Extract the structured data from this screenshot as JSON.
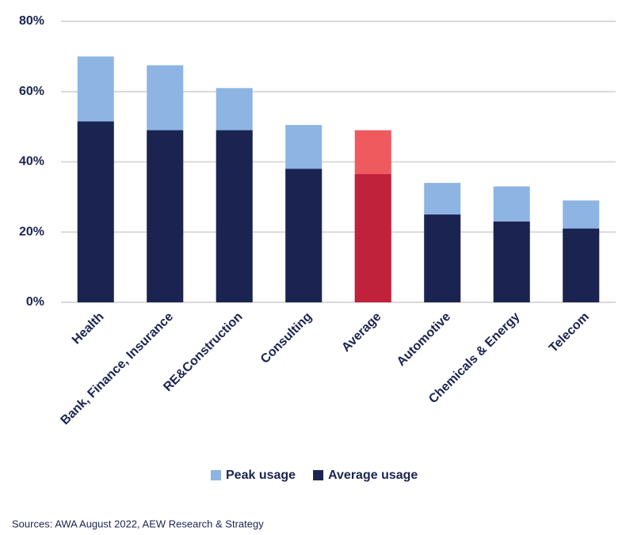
{
  "chart_data": {
    "type": "overlap_bar",
    "categories": [
      "Health",
      "Bank, Finance, Insurance",
      "RE&Construction",
      "Consulting",
      "Average",
      "Automotive",
      "Chemicals & Energy",
      "Telecom"
    ],
    "series": [
      {
        "name": "Peak usage",
        "color": "#8db4e2",
        "highlight_color": "#ef5a5f",
        "values": [
          70,
          67.5,
          61,
          50.5,
          49,
          34,
          33,
          29
        ]
      },
      {
        "name": "Average usage",
        "color": "#1b2451",
        "highlight_color": "#c1223b",
        "values": [
          51.5,
          49,
          49,
          38,
          36.5,
          25,
          23,
          21
        ]
      }
    ],
    "highlight": "Average",
    "ylim": [
      0,
      80
    ],
    "yticks": [
      {
        "value": 0,
        "label": "0%"
      },
      {
        "value": 20,
        "label": "20%"
      },
      {
        "value": 40,
        "label": "40%"
      },
      {
        "value": 60,
        "label": "60%"
      },
      {
        "value": 80,
        "label": "80%"
      }
    ],
    "grid": true,
    "legend": "bottom",
    "source": "Sources: AWA August 2022, AEW Research & Strategy"
  }
}
